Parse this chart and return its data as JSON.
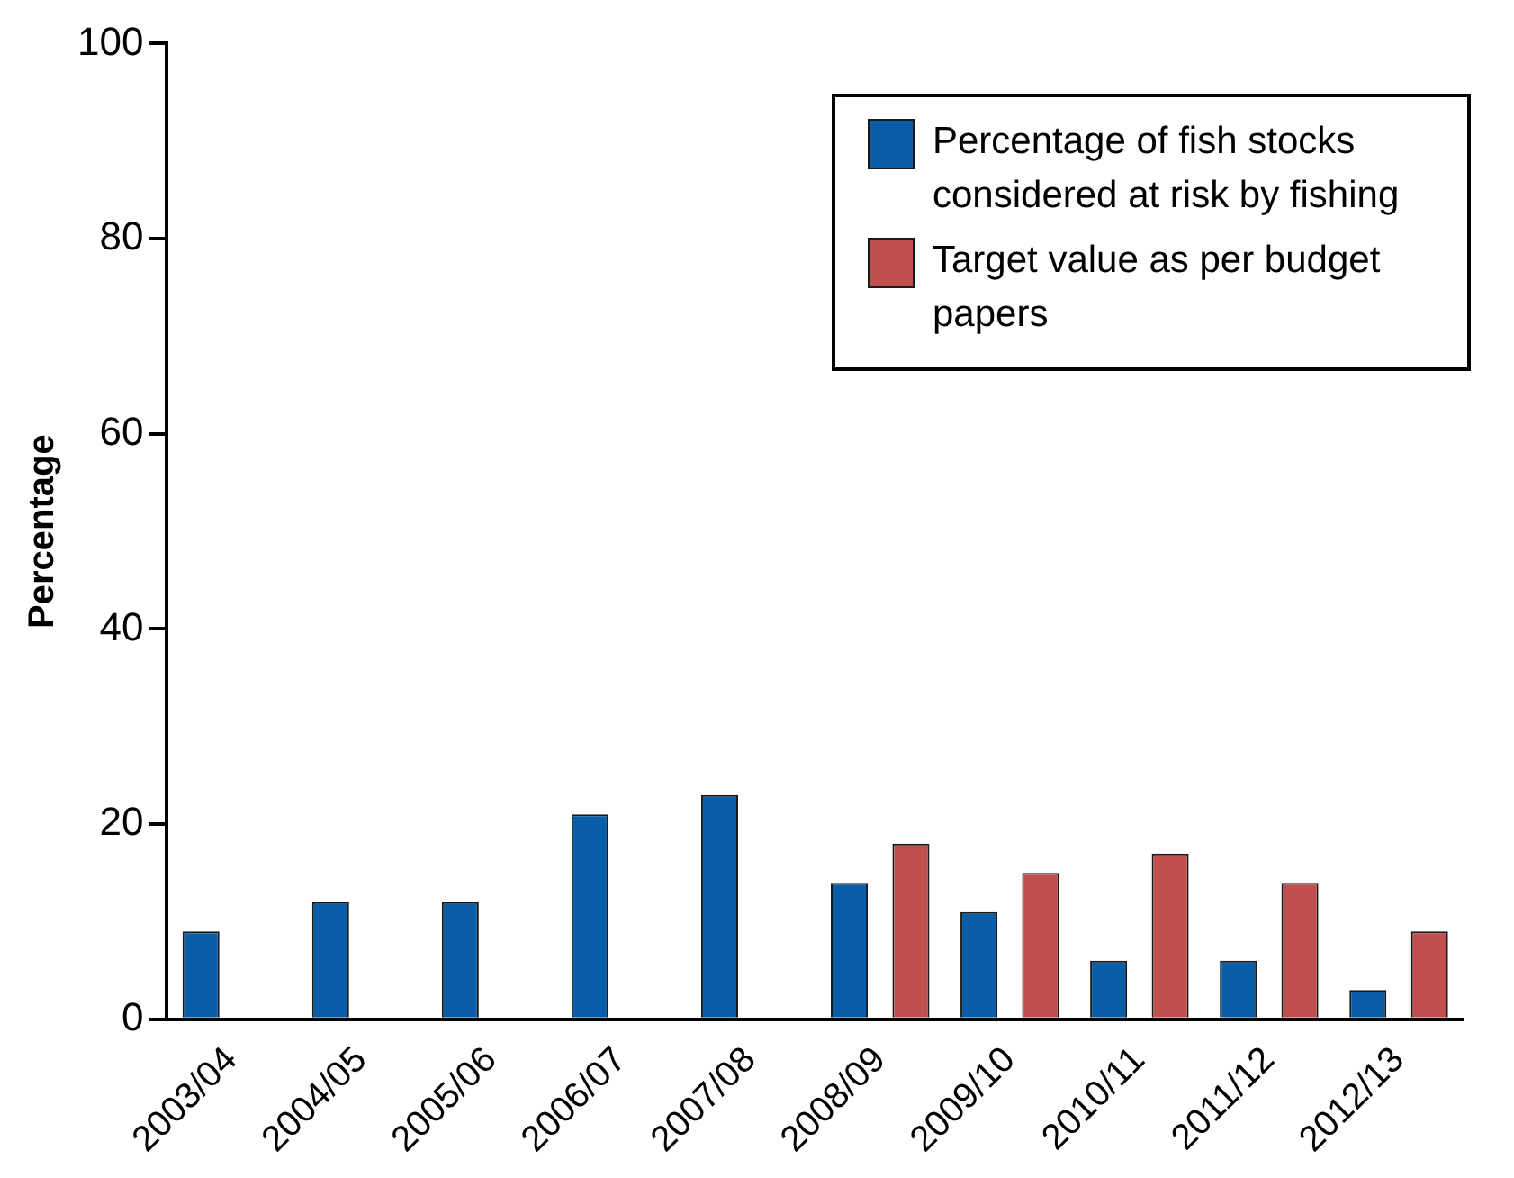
{
  "chart_data": {
    "type": "bar",
    "ylabel": "Percentage",
    "categories": [
      "2003/04",
      "2004/05",
      "2005/06",
      "2006/07",
      "2007/08",
      "2008/09",
      "2009/10",
      "2010/11",
      "2011/12",
      "2012/13"
    ],
    "series": [
      {
        "name": "Percentage of fish stocks considered at risk by fishing",
        "color": "#0a5ea8",
        "values": [
          9,
          12,
          12,
          21,
          23,
          14,
          11,
          6,
          6,
          3
        ]
      },
      {
        "name": "Target value as per budget papers",
        "color": "#c0504d",
        "values": [
          null,
          null,
          null,
          null,
          null,
          18,
          15,
          17,
          14,
          9
        ]
      }
    ],
    "ylim": [
      0,
      100
    ],
    "yticks": [
      0,
      20,
      40,
      60,
      80,
      100
    ],
    "grid": false,
    "legend": "top right"
  }
}
